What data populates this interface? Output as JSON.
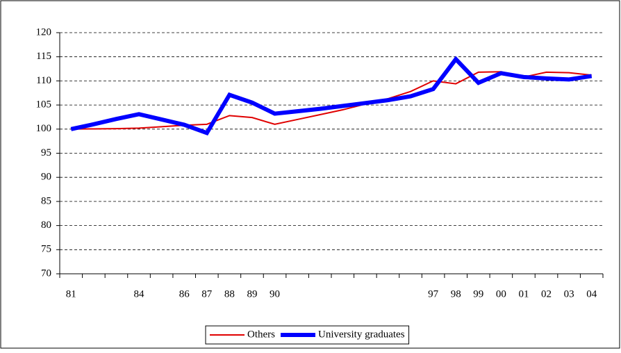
{
  "chart_data": {
    "type": "line",
    "categories": [
      "81",
      null,
      null,
      "84",
      null,
      "86",
      "87",
      "88",
      "89",
      "90",
      null,
      null,
      null,
      null,
      null,
      null,
      "97",
      "98",
      "99",
      "00",
      "01",
      "02",
      "03",
      "04"
    ],
    "series": [
      {
        "name": "Others",
        "color": "#e00000",
        "width": 2,
        "values": [
          100,
          100.05,
          100.1,
          100.2,
          100.5,
          100.8,
          101,
          102.8,
          102.4,
          101,
          102,
          103,
          104,
          105.2,
          106.3,
          107.8,
          110,
          109.4,
          111.8,
          111.9,
          110.8,
          111.8,
          111.7,
          111.2
        ]
      },
      {
        "name": "University graduates",
        "color": "#0000ff",
        "width": 6,
        "values": [
          100,
          101,
          102.1,
          103.1,
          102,
          100.9,
          99.2,
          107.1,
          105.5,
          103.2,
          103.7,
          104.2,
          104.8,
          105.4,
          106,
          106.8,
          108.3,
          114.5,
          109.6,
          111.6,
          110.8,
          110.5,
          110.3,
          111
        ]
      }
    ],
    "ylim": [
      70,
      120
    ],
    "yticks": [
      70,
      75,
      80,
      85,
      90,
      95,
      100,
      105,
      110,
      115,
      120
    ],
    "grid": true,
    "legend": "bottom"
  }
}
